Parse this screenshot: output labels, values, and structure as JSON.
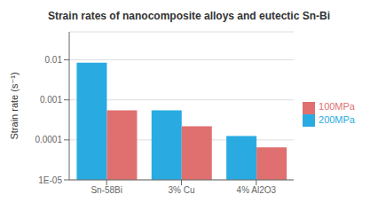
{
  "chart_data": {
    "type": "bar",
    "title": "Strain rates of nanocomposite alloys and eutectic Sn-Bi",
    "categories": [
      "Sn-58Bi",
      "3% Cu",
      "4% Al2O3"
    ],
    "series": [
      {
        "name": "200MPa",
        "color": "#29ABE2",
        "values": [
          0.0085,
          0.00055,
          0.000125
        ]
      },
      {
        "name": "100MPa",
        "color": "#E07070",
        "values": [
          0.00055,
          0.00022,
          6.5e-05
        ]
      }
    ],
    "ylabel": "Strain rate (s⁻¹)",
    "ylim": [
      1e-05,
      0.05
    ],
    "yticks": [
      {
        "value": 1e-05,
        "label": "1E-05"
      },
      0.0001,
      0.001,
      0.01
    ],
    "log": "y",
    "grid": true,
    "legend": "right"
  }
}
